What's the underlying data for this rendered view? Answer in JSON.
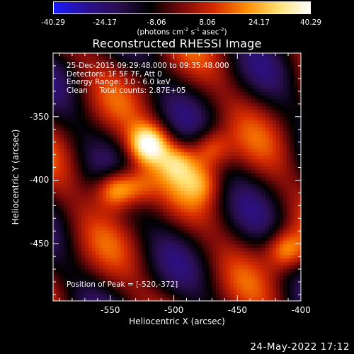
{
  "colorbar": {
    "ticks": [
      "-40.29",
      "-24.17",
      "-8.06",
      "8.06",
      "24.17",
      "40.29"
    ],
    "units_main": "(photons cm",
    "units_exp1": "-2",
    "units_mid": " s",
    "units_exp2": "-1",
    "units_mid2": " asec",
    "units_exp3": "-2",
    "units_end": ")",
    "range": [
      -40.29,
      40.29
    ],
    "colors": [
      "#1a1aff",
      "#2b1096",
      "#2b0f52",
      "#000000",
      "#7a0a0a",
      "#d62a00",
      "#ff8a00",
      "#ffe070",
      "#ffffff"
    ]
  },
  "info": {
    "line1": "25-Dec-2015 09:29:48.000 to 09:35:48.000",
    "line2": "Detectors: 1F 5F 7F, Att 0",
    "line3": "Energy Range: 3.0 - 6.0 keV",
    "line4": "Clean     Total counts: 2.87E+05",
    "peak": "Position of Peak = [-520,-372]"
  },
  "footer_date": "24-May-2022 17:12",
  "chart_data": {
    "type": "heatmap",
    "title": "Reconstructed RHESSI Image",
    "xlabel": "Heliocentric X (arcsec)",
    "ylabel": "Heliocentric Y (arcsec)",
    "xlim": [
      -595,
      -400
    ],
    "ylim": [
      -495,
      -300
    ],
    "x_ticks": [
      "-550",
      "-500",
      "-450",
      "-400"
    ],
    "x_tick_values": [
      -550,
      -500,
      -450,
      -400
    ],
    "y_ticks": [
      "-350",
      "-400",
      "-450"
    ],
    "y_tick_values": [
      -350,
      -400,
      -450
    ],
    "value_range": [
      -40.29,
      40.29
    ],
    "peak_position": [
      -520,
      -372
    ],
    "sources": [
      {
        "x": -520,
        "y": -372,
        "value": 40.29
      },
      {
        "x": -546,
        "y": -407,
        "value": 36.0
      },
      {
        "x": -412,
        "y": -455,
        "value": 28.0
      },
      {
        "x": -471,
        "y": -375,
        "value": 24.0
      },
      {
        "x": -497,
        "y": -386,
        "value": 22.0
      },
      {
        "x": -528,
        "y": -405,
        "value": 20.0
      },
      {
        "x": -478,
        "y": -402,
        "value": 16.0
      }
    ]
  }
}
